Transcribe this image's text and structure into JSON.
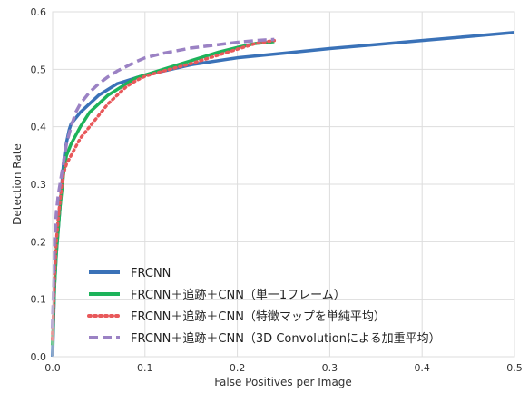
{
  "chart_data": {
    "type": "line",
    "title": "",
    "xlabel": "False Positives per Image",
    "ylabel": "Detection Rate",
    "xlim": [
      0,
      0.5
    ],
    "ylim": [
      0,
      0.6
    ],
    "xticks": [
      0.0,
      0.1,
      0.2,
      0.3,
      0.4,
      0.5
    ],
    "yticks": [
      0.0,
      0.1,
      0.2,
      0.3,
      0.4,
      0.5,
      0.6
    ],
    "xtick_labels": [
      "0.0",
      "0.1",
      "0.2",
      "0.3",
      "0.4",
      "0.5"
    ],
    "ytick_labels": [
      "0.0",
      "0.1",
      "0.2",
      "0.3",
      "0.4",
      "0.5",
      "0.6"
    ],
    "grid": true,
    "legend_position": "bottom-left",
    "series": [
      {
        "name": "FRCNN",
        "color": "#3a72b8",
        "style": "solid",
        "x": [
          0.0,
          0.002,
          0.004,
          0.006,
          0.008,
          0.01,
          0.012,
          0.014,
          0.016,
          0.018,
          0.02,
          0.025,
          0.03,
          0.04,
          0.05,
          0.06,
          0.07,
          0.08,
          0.09,
          0.1,
          0.12,
          0.15,
          0.2,
          0.25,
          0.3,
          0.35,
          0.4,
          0.45,
          0.5
        ],
        "y": [
          0.0,
          0.12,
          0.18,
          0.22,
          0.26,
          0.3,
          0.34,
          0.365,
          0.38,
          0.395,
          0.405,
          0.415,
          0.425,
          0.44,
          0.455,
          0.465,
          0.475,
          0.48,
          0.485,
          0.49,
          0.497,
          0.508,
          0.52,
          0.528,
          0.536,
          0.543,
          0.55,
          0.557,
          0.564
        ]
      },
      {
        "name": "FRCNN＋追跡＋CNN（単一1フレーム）",
        "color": "#1db35a",
        "style": "solid",
        "x": [
          0.0,
          0.002,
          0.004,
          0.006,
          0.008,
          0.01,
          0.012,
          0.015,
          0.02,
          0.025,
          0.03,
          0.04,
          0.05,
          0.06,
          0.07,
          0.08,
          0.09,
          0.1,
          0.12,
          0.15,
          0.18,
          0.2,
          0.22,
          0.24
        ],
        "y": [
          0.02,
          0.12,
          0.18,
          0.22,
          0.26,
          0.29,
          0.32,
          0.35,
          0.37,
          0.385,
          0.4,
          0.425,
          0.44,
          0.455,
          0.465,
          0.475,
          0.485,
          0.49,
          0.5,
          0.515,
          0.53,
          0.538,
          0.545,
          0.548
        ]
      },
      {
        "name": "FRCNN＋追跡＋CNN（特徴マップを単純平均）",
        "color": "#e8585a",
        "style": "dotted",
        "x": [
          0.0,
          0.002,
          0.004,
          0.006,
          0.008,
          0.01,
          0.012,
          0.015,
          0.02,
          0.025,
          0.03,
          0.04,
          0.05,
          0.06,
          0.07,
          0.08,
          0.09,
          0.1,
          0.12,
          0.15,
          0.18,
          0.2,
          0.22,
          0.24
        ],
        "y": [
          0.03,
          0.14,
          0.2,
          0.24,
          0.27,
          0.3,
          0.32,
          0.335,
          0.35,
          0.365,
          0.38,
          0.4,
          0.42,
          0.44,
          0.455,
          0.47,
          0.48,
          0.488,
          0.497,
          0.51,
          0.525,
          0.535,
          0.545,
          0.55
        ]
      },
      {
        "name": "FRCNN＋追跡＋CNN（3D Convolutionによる加重平均）",
        "color": "#9b82c4",
        "style": "dashed",
        "x": [
          0.0,
          0.002,
          0.004,
          0.006,
          0.008,
          0.01,
          0.012,
          0.015,
          0.02,
          0.025,
          0.03,
          0.04,
          0.05,
          0.06,
          0.07,
          0.08,
          0.09,
          0.1,
          0.12,
          0.15,
          0.18,
          0.2,
          0.22,
          0.24
        ],
        "y": [
          0.05,
          0.2,
          0.25,
          0.28,
          0.3,
          0.32,
          0.34,
          0.37,
          0.4,
          0.425,
          0.44,
          0.46,
          0.475,
          0.487,
          0.497,
          0.505,
          0.513,
          0.52,
          0.528,
          0.537,
          0.543,
          0.547,
          0.55,
          0.552
        ]
      }
    ]
  }
}
